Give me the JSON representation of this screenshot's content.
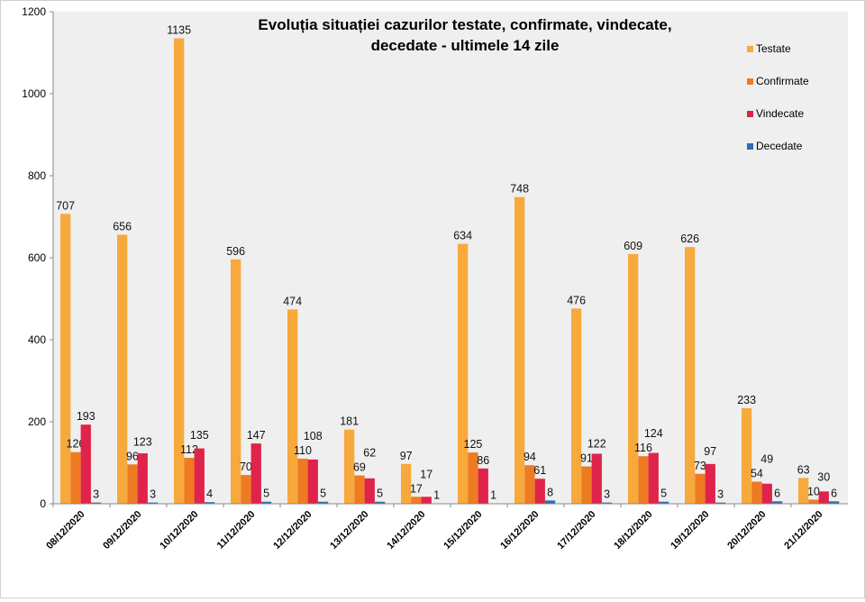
{
  "chart_data": {
    "type": "bar",
    "title": "Evoluția situației cazurilor testate, confirmate, vindecate, decedate -  ultimele 14 zile",
    "title_lines": [
      "Evoluția situației cazurilor testate, confirmate, vindecate,",
      "decedate -  ultimele 14 zile"
    ],
    "xlabel": "",
    "ylabel": "",
    "ylim": [
      0,
      1200
    ],
    "yticks": [
      0,
      200,
      400,
      600,
      800,
      1000,
      1200
    ],
    "grid": false,
    "legend_position": "top-right",
    "categories": [
      "08/12/2020",
      "09/12/2020",
      "10/12/2020",
      "11/12/2020",
      "12/12/2020",
      "13/12/2020",
      "14/12/2020",
      "15/12/2020",
      "16/12/2020",
      "17/12/2020",
      "18/12/2020",
      "19/12/2020",
      "20/12/2020",
      "21/12/2020"
    ],
    "series": [
      {
        "name": "Testate",
        "color": "#f7a93b",
        "values": [
          707,
          656,
          1135,
          596,
          474,
          181,
          97,
          634,
          748,
          476,
          609,
          626,
          233,
          63
        ]
      },
      {
        "name": "Confirmate",
        "color": "#ee7a22",
        "values": [
          126,
          96,
          112,
          70,
          110,
          69,
          17,
          125,
          94,
          91,
          116,
          73,
          54,
          10
        ]
      },
      {
        "name": "Vindecate",
        "color": "#e0234a",
        "values": [
          193,
          123,
          135,
          147,
          108,
          62,
          17,
          86,
          61,
          122,
          124,
          97,
          49,
          30
        ]
      },
      {
        "name": "Decedate",
        "color": "#2f6db5",
        "values": [
          3,
          3,
          4,
          5,
          5,
          5,
          1,
          1,
          8,
          3,
          5,
          3,
          6,
          6
        ]
      }
    ]
  }
}
